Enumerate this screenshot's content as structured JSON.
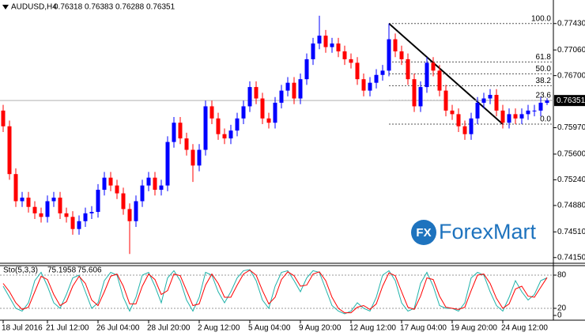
{
  "chart_data": [
    {
      "type": "candlestick",
      "symbol": "AUDUSD,H4",
      "categories": [
        "18 Jul 2016",
        null,
        null,
        null,
        null,
        null,
        null,
        "21 Jul 12:00",
        null,
        null,
        null,
        null,
        null,
        null,
        null,
        "26 Jul 04:00",
        null,
        null,
        null,
        null,
        null,
        null,
        null,
        "28 Jul 20:00",
        null,
        null,
        null,
        null,
        null,
        null,
        null,
        "2 Aug 12:00",
        null,
        null,
        null,
        null,
        null,
        null,
        null,
        "5 Aug 04:00",
        null,
        null,
        null,
        null,
        null,
        null,
        null,
        "9 Aug 20:00",
        null,
        null,
        null,
        null,
        null,
        null,
        null,
        "12 Aug 12:00",
        null,
        null,
        null,
        null,
        null,
        null,
        null,
        "17 Aug 04:00",
        null,
        null,
        null,
        null,
        null,
        null,
        null,
        "19 Aug 20:00",
        null,
        null,
        null,
        null,
        null,
        null,
        null,
        "24 Aug 12:00",
        null,
        null,
        null,
        null,
        null,
        null,
        null
      ],
      "open": [
        0.7621,
        0.7599,
        0.7532,
        0.7494,
        0.7499,
        0.7486,
        0.7477,
        0.7472,
        0.7494,
        0.7499,
        0.7477,
        0.7472,
        0.7455,
        0.7466,
        0.7477,
        0.7479,
        0.751,
        0.7527,
        0.7516,
        0.7505,
        0.7483,
        0.7466,
        0.7494,
        0.7516,
        0.7527,
        0.751,
        0.7516,
        0.7577,
        0.7604,
        0.7582,
        0.7566,
        0.7544,
        0.7566,
        0.7627,
        0.761,
        0.7588,
        0.7582,
        0.7593,
        0.761,
        0.7627,
        0.7654,
        0.7638,
        0.761,
        0.7604,
        0.7632,
        0.7649,
        0.766,
        0.7638,
        0.7665,
        0.7693,
        0.7715,
        0.7726,
        0.771,
        0.7715,
        0.7704,
        0.7693,
        0.7688,
        0.7665,
        0.7649,
        0.766,
        0.7671,
        0.7677,
        0.7721,
        0.7704,
        0.7693,
        0.7665,
        0.7627,
        0.7654,
        0.7688,
        0.7677,
        0.7649,
        0.7621,
        0.7616,
        0.7599,
        0.7588,
        0.761,
        0.7632,
        0.7638,
        0.7643,
        0.7621,
        0.7604,
        0.7616,
        0.761,
        0.7616,
        0.7621,
        0.7621,
        0.76318
      ],
      "high": [
        0.7629,
        0.7607,
        0.754,
        0.7507,
        0.7507,
        0.7494,
        0.7485,
        0.7502,
        0.7507,
        0.7507,
        0.7485,
        0.748,
        0.7474,
        0.7485,
        0.7487,
        0.7518,
        0.7535,
        0.7535,
        0.7524,
        0.7513,
        0.7491,
        0.7502,
        0.7524,
        0.7535,
        0.7535,
        0.7524,
        0.7585,
        0.7612,
        0.7612,
        0.759,
        0.7574,
        0.7574,
        0.7635,
        0.7635,
        0.7618,
        0.7596,
        0.7601,
        0.7618,
        0.7635,
        0.7662,
        0.7662,
        0.7646,
        0.7618,
        0.764,
        0.7657,
        0.7668,
        0.7668,
        0.7673,
        0.7701,
        0.7723,
        0.7754,
        0.7734,
        0.7723,
        0.7723,
        0.7712,
        0.7701,
        0.7696,
        0.7673,
        0.7668,
        0.7679,
        0.7685,
        0.7743,
        0.7729,
        0.7712,
        0.7701,
        0.7673,
        0.7662,
        0.7696,
        0.7696,
        0.7685,
        0.7657,
        0.7629,
        0.7624,
        0.7607,
        0.7618,
        0.764,
        0.7646,
        0.7651,
        0.7651,
        0.7629,
        0.7624,
        0.7624,
        0.7624,
        0.7629,
        0.7629,
        0.764,
        0.76383
      ],
      "low": [
        0.7591,
        0.7524,
        0.7486,
        0.7486,
        0.7478,
        0.7469,
        0.7464,
        0.7464,
        0.7486,
        0.7469,
        0.7464,
        0.7447,
        0.7447,
        0.7458,
        0.7469,
        0.7471,
        0.7502,
        0.7508,
        0.7497,
        0.7475,
        0.742,
        0.7458,
        0.7486,
        0.7508,
        0.7502,
        0.7502,
        0.7508,
        0.7569,
        0.7574,
        0.7558,
        0.7521,
        0.7536,
        0.7558,
        0.7602,
        0.758,
        0.7574,
        0.7574,
        0.7585,
        0.7602,
        0.7619,
        0.763,
        0.7602,
        0.7596,
        0.7596,
        0.7624,
        0.7641,
        0.763,
        0.763,
        0.7657,
        0.7685,
        0.7707,
        0.7702,
        0.7702,
        0.7696,
        0.7685,
        0.768,
        0.7657,
        0.7641,
        0.7641,
        0.7652,
        0.7663,
        0.7669,
        0.7696,
        0.7685,
        0.7657,
        0.7619,
        0.7619,
        0.7646,
        0.7669,
        0.7641,
        0.7613,
        0.7608,
        0.7591,
        0.758,
        0.758,
        0.7602,
        0.7624,
        0.763,
        0.7613,
        0.7596,
        0.7596,
        0.7602,
        0.7602,
        0.7608,
        0.7613,
        0.7613,
        0.76288
      ],
      "close": [
        0.7599,
        0.7532,
        0.7494,
        0.7499,
        0.7486,
        0.7477,
        0.7472,
        0.7494,
        0.7499,
        0.7477,
        0.7472,
        0.7455,
        0.7466,
        0.7477,
        0.7479,
        0.751,
        0.7527,
        0.7516,
        0.7505,
        0.7483,
        0.7466,
        0.7494,
        0.7516,
        0.7527,
        0.751,
        0.7516,
        0.7577,
        0.7604,
        0.7582,
        0.7566,
        0.7544,
        0.7566,
        0.7627,
        0.761,
        0.7588,
        0.7582,
        0.7593,
        0.761,
        0.7627,
        0.7654,
        0.7638,
        0.761,
        0.7604,
        0.7632,
        0.7649,
        0.766,
        0.7638,
        0.7665,
        0.7693,
        0.7715,
        0.7726,
        0.771,
        0.7715,
        0.7704,
        0.7693,
        0.7688,
        0.7665,
        0.7649,
        0.766,
        0.7671,
        0.7677,
        0.7721,
        0.7704,
        0.7693,
        0.7665,
        0.7627,
        0.7654,
        0.7688,
        0.7677,
        0.7649,
        0.7621,
        0.7616,
        0.7599,
        0.7588,
        0.761,
        0.7632,
        0.7638,
        0.7643,
        0.7621,
        0.7604,
        0.7616,
        0.761,
        0.7616,
        0.7621,
        0.7621,
        0.7632,
        0.76351
      ],
      "bull_color": "#0000ff",
      "bear_color": "#ff0000",
      "ylim": [
        0.7407,
        0.7776
      ],
      "yticks": [
        {
          "value": 0.7743,
          "label": "0.77430"
        },
        {
          "value": 0.7706,
          "label": "0.77060"
        },
        {
          "value": 0.767,
          "label": "0.76700"
        },
        {
          "value": 0.7597,
          "label": "0.75970"
        },
        {
          "value": 0.756,
          "label": "0.75600"
        },
        {
          "value": 0.7524,
          "label": "0.75240"
        },
        {
          "value": 0.7488,
          "label": "0.74880"
        },
        {
          "value": 0.7451,
          "label": "0.74510"
        },
        {
          "value": 0.7415,
          "label": "0.74150"
        }
      ],
      "grid": false,
      "fibonacci": {
        "high": 0.7743,
        "low": 0.7602,
        "levels": [
          {
            "value": 100,
            "label": "100.0"
          },
          61.8,
          {
            "value": 50,
            "label": "50.0"
          },
          38.2,
          23.6,
          {
            "value": 0,
            "label": "0.0"
          }
        ]
      }
    },
    {
      "type": "line",
      "name": "Sto(5,3,3)",
      "series": [
        {
          "color": "#20b2aa",
          "values": [
            60,
            40,
            20,
            15,
            30,
            70,
            85,
            60,
            30,
            20,
            45,
            75,
            80,
            50,
            20,
            30,
            70,
            85,
            80,
            40,
            15,
            40,
            80,
            85,
            60,
            30,
            75,
            88,
            70,
            35,
            15,
            40,
            85,
            80,
            50,
            30,
            50,
            75,
            88,
            90,
            70,
            35,
            20,
            60,
            85,
            88,
            70,
            50,
            75,
            88,
            85,
            55,
            25,
            15,
            10,
            15,
            30,
            20,
            15,
            40,
            80,
            88,
            70,
            30,
            15,
            20,
            65,
            85,
            60,
            25,
            20,
            20,
            15,
            30,
            75,
            85,
            80,
            50,
            25,
            15,
            40,
            70,
            50,
            35,
            45,
            70,
            75.1958
          ]
        },
        {
          "color": "#ff0000",
          "values": [
            65,
            50,
            30,
            18,
            22,
            50,
            78,
            72,
            45,
            25,
            32,
            60,
            78,
            65,
            35,
            25,
            50,
            78,
            82,
            60,
            28,
            28,
            60,
            82,
            72,
            45,
            52,
            82,
            79,
            52,
            25,
            28,
            62,
            82,
            65,
            40,
            40,
            62,
            82,
            89,
            80,
            52,
            28,
            40,
            72,
            86,
            79,
            60,
            62,
            82,
            86,
            70,
            40,
            20,
            12,
            12,
            22,
            25,
            18,
            28,
            60,
            84,
            79,
            50,
            22,
            18,
            42,
            75,
            72,
            42,
            22,
            20,
            18,
            22,
            52,
            80,
            82,
            65,
            38,
            20,
            28,
            55,
            60,
            42,
            40,
            58,
            75.606
          ]
        }
      ],
      "ylim": [
        0,
        100
      ],
      "yticks": [
        80,
        20,
        0
      ],
      "levels": [
        80,
        20
      ]
    }
  ],
  "watermark": {
    "icon": "FX",
    "text": "ForexMart"
  }
}
